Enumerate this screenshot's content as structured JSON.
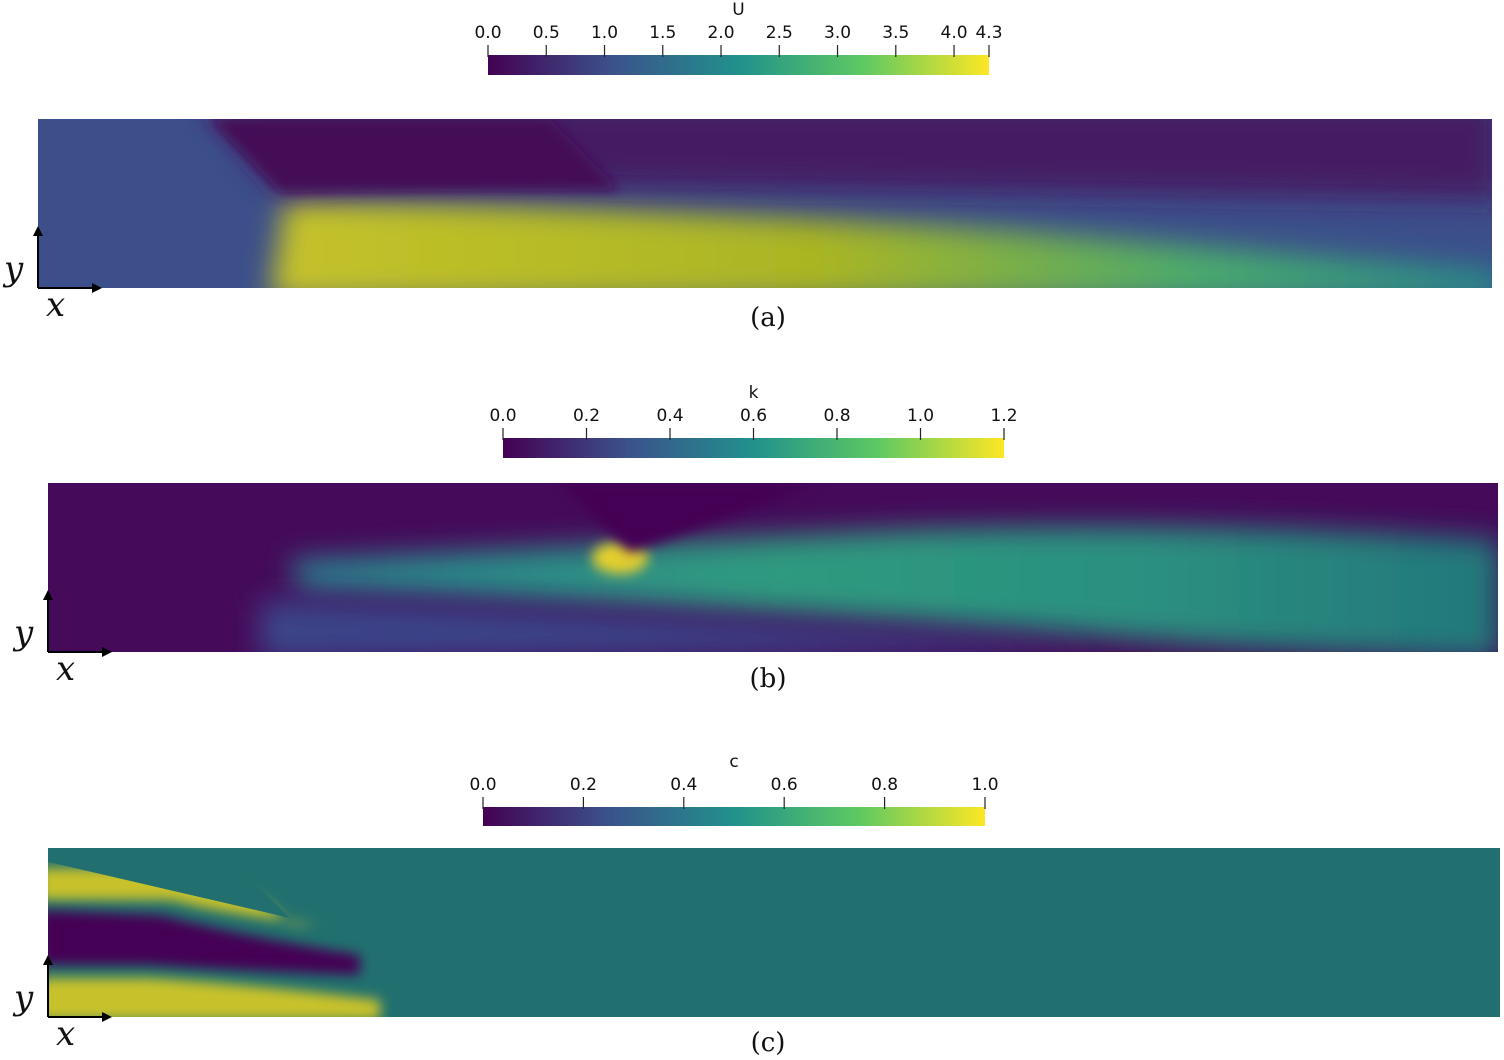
{
  "panels": [
    {
      "colorbar": {
        "title": "U",
        "lim": [
          0,
          4.3
        ],
        "ticks": [
          {
            "value": 0,
            "label": "0.0"
          },
          {
            "value": 0.5,
            "label": "0.5"
          },
          {
            "value": 1,
            "label": "1.0"
          },
          {
            "value": 1.5,
            "label": "1.5"
          },
          {
            "value": 2,
            "label": "2.0"
          },
          {
            "value": 2.5,
            "label": "2.5"
          },
          {
            "value": 3,
            "label": "3.0"
          },
          {
            "value": 3.5,
            "label": "3.5"
          },
          {
            "value": 4,
            "label": "4.0"
          },
          4.3
        ]
      },
      "axes": {
        "x": "x",
        "y": "y"
      },
      "caption": "(a)"
    },
    {
      "colorbar": {
        "title": "k",
        "lim": [
          0,
          1.2
        ],
        "ticks": [
          {
            "value": 0,
            "label": "0.0"
          },
          0.2,
          0.4,
          0.6,
          0.8,
          {
            "value": 1,
            "label": "1.0"
          },
          1.2
        ]
      },
      "axes": {
        "x": "x",
        "y": "y"
      },
      "caption": "(b)"
    },
    {
      "colorbar": {
        "title": "c",
        "lim": [
          0,
          1
        ],
        "ticks": [
          {
            "value": 0,
            "label": "0.0"
          },
          0.2,
          0.4,
          0.6,
          0.8,
          {
            "value": 1,
            "label": "1.0"
          }
        ]
      },
      "axes": {
        "x": "x",
        "y": "y"
      },
      "caption": "(c)"
    }
  ]
}
